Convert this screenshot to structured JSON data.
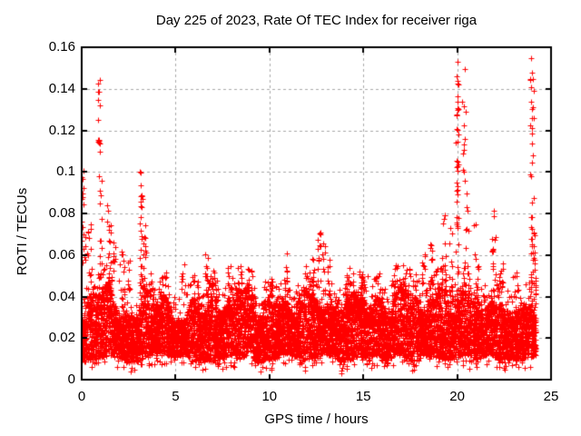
{
  "chart_data": {
    "type": "scatter",
    "title": "Day 225 of 2023, Rate Of TEC Index for receiver riga",
    "xlabel": "GPS time / hours",
    "ylabel": "ROTI / TECUs",
    "xlim": [
      0,
      25
    ],
    "ylim": [
      0,
      0.16
    ],
    "xticks": [
      0,
      5,
      10,
      15,
      20,
      25
    ],
    "yticks": [
      0,
      0.02,
      0.04,
      0.06,
      0.08,
      0.1,
      0.12,
      0.14,
      0.16
    ],
    "grid": true,
    "legend": "none",
    "marker": "plus",
    "marker_color": "#ff0000",
    "grid_color": "#a8a8a8",
    "frame_color": "#000000",
    "baseline_band": {
      "description": "dense noise band of ROTI values covering all observed hours",
      "x_range": [
        0,
        24.2
      ],
      "y_core_low": [
        0.008,
        0.013
      ],
      "y_core_high": [
        0.028,
        0.046
      ],
      "sparse_below_frac": 0.015,
      "sparse_below_depth": 0.005,
      "fuzz_above_frac": 0.08,
      "fuzz_above_height": 0.012,
      "n_points": 9200
    },
    "spikes": [
      {
        "t": 0.08,
        "ymin": 0.055,
        "ymax": 0.107,
        "n": 18,
        "w": 0.25
      },
      {
        "t": 0.35,
        "ymin": 0.045,
        "ymax": 0.075,
        "n": 10,
        "w": 0.3
      },
      {
        "t": 0.9,
        "ymin": 0.108,
        "ymax": 0.146,
        "n": 14,
        "w": 0.12
      },
      {
        "t": 1.0,
        "ymin": 0.05,
        "ymax": 0.098,
        "n": 12,
        "w": 0.2
      },
      {
        "t": 1.45,
        "ymin": 0.045,
        "ymax": 0.085,
        "n": 14,
        "w": 0.2
      },
      {
        "t": 1.7,
        "ymin": 0.04,
        "ymax": 0.07,
        "n": 10,
        "w": 0.2
      },
      {
        "t": 2.15,
        "ymin": 0.04,
        "ymax": 0.066,
        "n": 12,
        "w": 0.3
      },
      {
        "t": 2.5,
        "ymin": 0.04,
        "ymax": 0.058,
        "n": 8,
        "w": 0.2
      },
      {
        "t": 3.15,
        "ymin": 0.042,
        "ymax": 0.107,
        "n": 26,
        "w": 0.15
      },
      {
        "t": 3.35,
        "ymin": 0.04,
        "ymax": 0.08,
        "n": 12,
        "w": 0.15
      },
      {
        "t": 4.3,
        "ymin": 0.036,
        "ymax": 0.05,
        "n": 6,
        "w": 0.25
      },
      {
        "t": 5.4,
        "ymin": 0.036,
        "ymax": 0.057,
        "n": 8,
        "w": 0.25
      },
      {
        "t": 6.1,
        "ymin": 0.036,
        "ymax": 0.05,
        "n": 6,
        "w": 0.3
      },
      {
        "t": 6.65,
        "ymin": 0.04,
        "ymax": 0.063,
        "n": 14,
        "w": 0.2
      },
      {
        "t": 7.05,
        "ymin": 0.036,
        "ymax": 0.055,
        "n": 8,
        "w": 0.2
      },
      {
        "t": 7.8,
        "ymin": 0.036,
        "ymax": 0.056,
        "n": 8,
        "w": 0.25
      },
      {
        "t": 8.4,
        "ymin": 0.036,
        "ymax": 0.052,
        "n": 8,
        "w": 0.3
      },
      {
        "t": 9.0,
        "ymin": 0.036,
        "ymax": 0.05,
        "n": 6,
        "w": 0.3
      },
      {
        "t": 10.0,
        "ymin": 0.036,
        "ymax": 0.05,
        "n": 6,
        "w": 0.3
      },
      {
        "t": 10.9,
        "ymin": 0.04,
        "ymax": 0.064,
        "n": 10,
        "w": 0.15
      },
      {
        "t": 11.5,
        "ymin": 0.036,
        "ymax": 0.052,
        "n": 7,
        "w": 0.3
      },
      {
        "t": 12.3,
        "ymin": 0.04,
        "ymax": 0.062,
        "n": 10,
        "w": 0.2
      },
      {
        "t": 12.65,
        "ymin": 0.04,
        "ymax": 0.072,
        "n": 14,
        "w": 0.15
      },
      {
        "t": 12.9,
        "ymin": 0.04,
        "ymax": 0.066,
        "n": 10,
        "w": 0.15
      },
      {
        "t": 13.2,
        "ymin": 0.04,
        "ymax": 0.06,
        "n": 8,
        "w": 0.2
      },
      {
        "t": 14.2,
        "ymin": 0.036,
        "ymax": 0.054,
        "n": 7,
        "w": 0.3
      },
      {
        "t": 15.1,
        "ymin": 0.036,
        "ymax": 0.05,
        "n": 6,
        "w": 0.3
      },
      {
        "t": 15.8,
        "ymin": 0.036,
        "ymax": 0.053,
        "n": 7,
        "w": 0.25
      },
      {
        "t": 16.6,
        "ymin": 0.036,
        "ymax": 0.05,
        "n": 6,
        "w": 0.3
      },
      {
        "t": 17.3,
        "ymin": 0.038,
        "ymax": 0.057,
        "n": 9,
        "w": 0.3
      },
      {
        "t": 18.2,
        "ymin": 0.04,
        "ymax": 0.062,
        "n": 10,
        "w": 0.25
      },
      {
        "t": 18.65,
        "ymin": 0.04,
        "ymax": 0.066,
        "n": 10,
        "w": 0.2
      },
      {
        "t": 19.3,
        "ymin": 0.045,
        "ymax": 0.08,
        "n": 14,
        "w": 0.2
      },
      {
        "t": 19.65,
        "ymin": 0.04,
        "ymax": 0.075,
        "n": 10,
        "w": 0.2
      },
      {
        "t": 20.0,
        "ymin": 0.05,
        "ymax": 0.155,
        "n": 40,
        "w": 0.12
      },
      {
        "t": 20.35,
        "ymin": 0.09,
        "ymax": 0.15,
        "n": 12,
        "w": 0.2
      },
      {
        "t": 20.5,
        "ymin": 0.05,
        "ymax": 0.09,
        "n": 10,
        "w": 0.2
      },
      {
        "t": 21.0,
        "ymin": 0.04,
        "ymax": 0.075,
        "n": 10,
        "w": 0.25
      },
      {
        "t": 21.95,
        "ymin": 0.05,
        "ymax": 0.082,
        "n": 14,
        "w": 0.2
      },
      {
        "t": 22.35,
        "ymin": 0.04,
        "ymax": 0.065,
        "n": 8,
        "w": 0.2
      },
      {
        "t": 23.1,
        "ymin": 0.04,
        "ymax": 0.06,
        "n": 8,
        "w": 0.3
      },
      {
        "t": 24.0,
        "ymin": 0.04,
        "ymax": 0.155,
        "n": 45,
        "w": 0.2
      },
      {
        "t": 24.15,
        "ymin": 0.04,
        "ymax": 0.07,
        "n": 12,
        "w": 0.1
      }
    ]
  }
}
